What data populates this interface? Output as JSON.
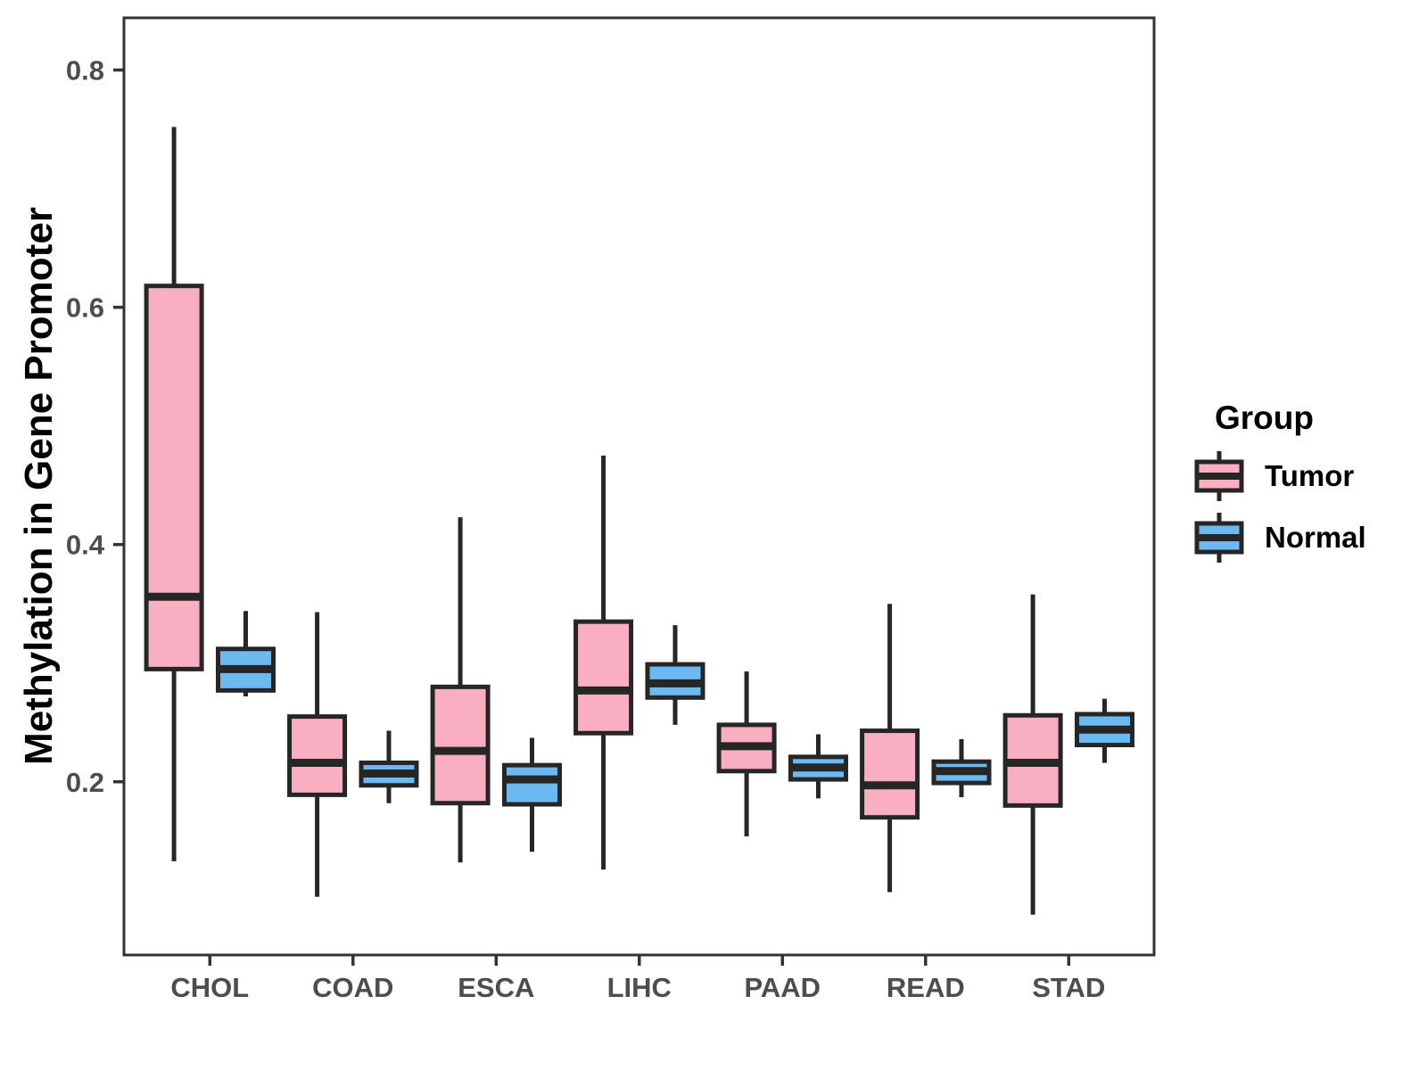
{
  "chart_data": {
    "type": "boxplot",
    "title": "",
    "xlabel": "",
    "ylabel": "Methylation in Gene Promoter",
    "categories": [
      "CHOL",
      "COAD",
      "ESCA",
      "LIHC",
      "PAAD",
      "READ",
      "STAD"
    ],
    "yticks": [
      0.2,
      0.4,
      0.6,
      0.8
    ],
    "ytick_labels": [
      "0.2",
      "0.4",
      "0.6",
      "0.8"
    ],
    "ylim": [
      0.054,
      0.844
    ],
    "grid": false,
    "legend": {
      "title": "Group",
      "position": "right",
      "entries": [
        {
          "label": "Tumor",
          "color": "#F9AFC1"
        },
        {
          "label": "Normal",
          "color": "#6CB9F1"
        }
      ]
    },
    "colors": {
      "box_stroke": "#262626",
      "panel_border": "#333333",
      "tick_label": "#4D4D4D",
      "axis_title": "#000000",
      "legend_text": "#000000",
      "background": "#FFFFFF"
    },
    "series": [
      {
        "name": "Tumor",
        "color": "#F9AFC1",
        "boxes": [
          {
            "category": "CHOL",
            "min": 0.133,
            "q1": 0.295,
            "median": 0.356,
            "q3": 0.618,
            "max": 0.752
          },
          {
            "category": "COAD",
            "min": 0.103,
            "q1": 0.189,
            "median": 0.216,
            "q3": 0.255,
            "max": 0.343
          },
          {
            "category": "ESCA",
            "min": 0.132,
            "q1": 0.182,
            "median": 0.226,
            "q3": 0.28,
            "max": 0.423
          },
          {
            "category": "LIHC",
            "min": 0.126,
            "q1": 0.241,
            "median": 0.277,
            "q3": 0.335,
            "max": 0.475
          },
          {
            "category": "PAAD",
            "min": 0.154,
            "q1": 0.209,
            "median": 0.23,
            "q3": 0.248,
            "max": 0.293
          },
          {
            "category": "READ",
            "min": 0.107,
            "q1": 0.17,
            "median": 0.197,
            "q3": 0.243,
            "max": 0.35
          },
          {
            "category": "STAD",
            "min": 0.088,
            "q1": 0.18,
            "median": 0.216,
            "q3": 0.256,
            "max": 0.358
          }
        ]
      },
      {
        "name": "Normal",
        "color": "#6CB9F1",
        "boxes": [
          {
            "category": "CHOL",
            "min": 0.272,
            "q1": 0.277,
            "median": 0.295,
            "q3": 0.312,
            "max": 0.344
          },
          {
            "category": "COAD",
            "min": 0.182,
            "q1": 0.197,
            "median": 0.207,
            "q3": 0.216,
            "max": 0.243
          },
          {
            "category": "ESCA",
            "min": 0.141,
            "q1": 0.181,
            "median": 0.202,
            "q3": 0.214,
            "max": 0.237
          },
          {
            "category": "LIHC",
            "min": 0.248,
            "q1": 0.271,
            "median": 0.283,
            "q3": 0.299,
            "max": 0.332
          },
          {
            "category": "PAAD",
            "min": 0.186,
            "q1": 0.202,
            "median": 0.212,
            "q3": 0.221,
            "max": 0.24
          },
          {
            "category": "READ",
            "min": 0.187,
            "q1": 0.199,
            "median": 0.209,
            "q3": 0.217,
            "max": 0.236
          },
          {
            "category": "STAD",
            "min": 0.216,
            "q1": 0.231,
            "median": 0.244,
            "q3": 0.257,
            "max": 0.27
          }
        ]
      }
    ]
  }
}
